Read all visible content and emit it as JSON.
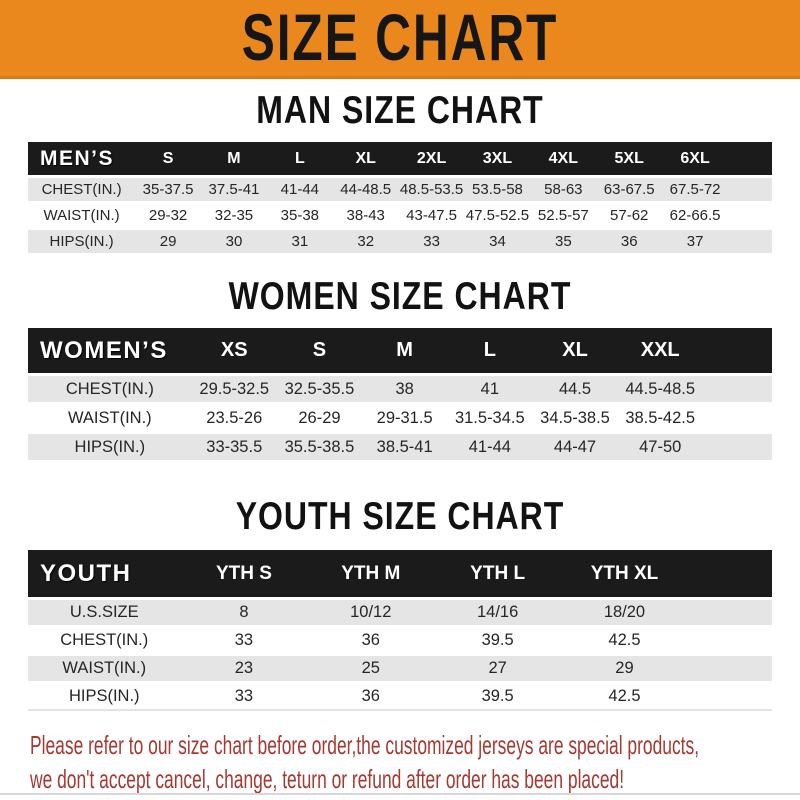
{
  "banner": {
    "title": "SIZE CHART",
    "bg_color": "#ea881e",
    "text_color": "#161616"
  },
  "sections": [
    {
      "title": "MAN SIZE CHART",
      "header_label": "MEN’S",
      "columns": [
        "S",
        "M",
        "L",
        "XL",
        "2XL",
        "3XL",
        "4XL",
        "5XL",
        "6XL"
      ],
      "rows": [
        {
          "label": "CHEST(IN.)",
          "values": [
            "35-37.5",
            "37.5-41",
            "41-44",
            "44-48.5",
            "48.5-53.5",
            "53.5-58",
            "58-63",
            "63-67.5",
            "67.5-72"
          ]
        },
        {
          "label": "WAIST(IN.)",
          "values": [
            "29-32",
            "32-35",
            "35-38",
            "38-43",
            "43-47.5",
            "47.5-52.5",
            "52.5-57",
            "57-62",
            "62-66.5"
          ]
        },
        {
          "label": "HIPS(IN.)",
          "values": [
            "29",
            "30",
            "31",
            "32",
            "33",
            "34",
            "35",
            "36",
            "37"
          ]
        }
      ]
    },
    {
      "title": "WOMEN SIZE CHART",
      "header_label": "WOMEN’S",
      "columns": [
        "XS",
        "S",
        "M",
        "L",
        "XL",
        "XXL"
      ],
      "rows": [
        {
          "label": "CHEST(IN.)",
          "values": [
            "29.5-32.5",
            "32.5-35.5",
            "38",
            "41",
            "44.5",
            "44.5-48.5"
          ]
        },
        {
          "label": "WAIST(IN.)",
          "values": [
            "23.5-26",
            "26-29",
            "29-31.5",
            "31.5-34.5",
            "34.5-38.5",
            "38.5-42.5"
          ]
        },
        {
          "label": "HIPS(IN.)",
          "values": [
            "33-35.5",
            "35.5-38.5",
            "38.5-41",
            "41-44",
            "44-47",
            "47-50"
          ]
        }
      ]
    },
    {
      "title": "YOUTH SIZE CHART",
      "header_label": "YOUTH",
      "columns": [
        "YTH S",
        "YTH M",
        "YTH L",
        "YTH XL"
      ],
      "rows": [
        {
          "label": "U.S.SIZE",
          "values": [
            "8",
            "10/12",
            "14/16",
            "18/20"
          ]
        },
        {
          "label": "CHEST(IN.)",
          "values": [
            "33",
            "36",
            "39.5",
            "42.5"
          ]
        },
        {
          "label": "WAIST(IN.)",
          "values": [
            "23",
            "25",
            "27",
            "29"
          ]
        },
        {
          "label": "HIPS(IN.)",
          "values": [
            "33",
            "36",
            "39.5",
            "42.5"
          ]
        }
      ]
    }
  ],
  "footer": {
    "lines": [
      "Please refer to our size chart before order,the customized jerseys are special products,",
      "we don't accept cancel, change, teturn or refund after order has been placed!"
    ],
    "text_color": "#a53a33"
  },
  "table_colors": {
    "header_bg": "#1b1b1b",
    "header_text": "#ffffff",
    "stripe_bg": "#e5e5e5"
  }
}
